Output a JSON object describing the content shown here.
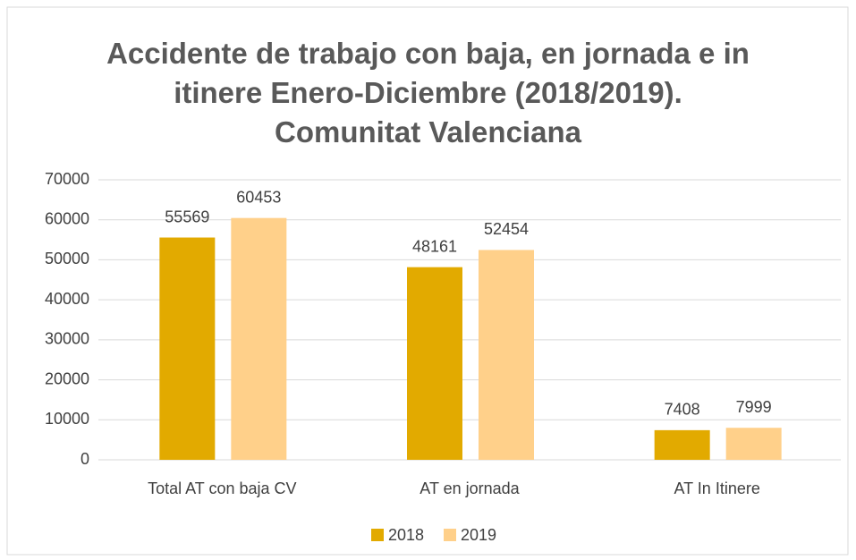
{
  "chart_data": {
    "type": "bar",
    "title": "Accidente de trabajo con baja, en jornada e in itinere Enero-Diciembre (2018/2019). Comunitat Valenciana",
    "categories": [
      "Total AT con baja CV",
      "AT en jornada",
      "AT In Itinere"
    ],
    "series": [
      {
        "name": "2018",
        "color": "#e2aa00",
        "values": [
          55569,
          48161,
          7408
        ]
      },
      {
        "name": "2019",
        "color": "#ffd08a",
        "values": [
          60453,
          52454,
          7999
        ]
      }
    ],
    "ylim": [
      0,
      70000
    ],
    "yticks": [
      0,
      10000,
      20000,
      30000,
      40000,
      50000,
      60000,
      70000
    ],
    "grid": true,
    "legend": "bottom"
  }
}
